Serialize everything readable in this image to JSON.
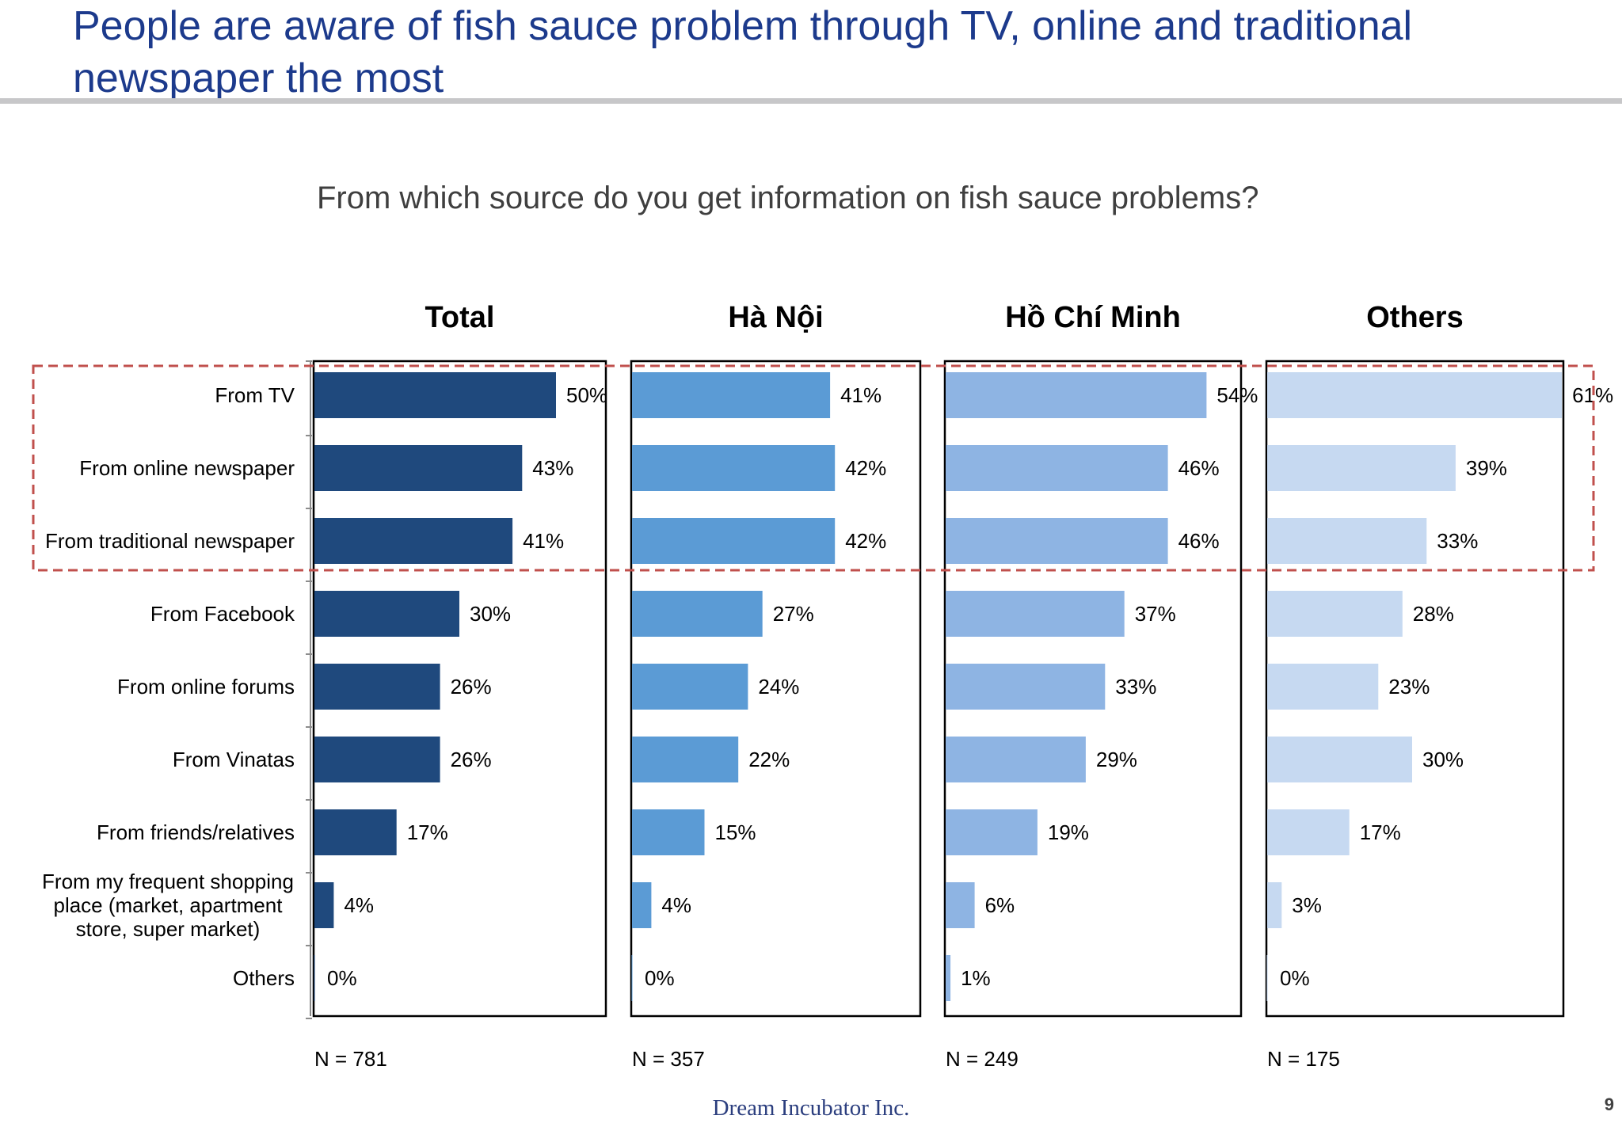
{
  "slide": {
    "title": "People are aware of fish sauce problem through TV, online and traditional newspaper the most",
    "question": "From which source do you get information on fish sauce problems?",
    "footer": "Dream Incubator Inc.",
    "page_number": "9"
  },
  "colors": {
    "title": "#1c3a8c",
    "highlight_border": "#c0504d",
    "series": [
      "#1f497d",
      "#5b9bd5",
      "#8eb4e3",
      "#c6d9f1"
    ]
  },
  "chart_data": {
    "type": "bar",
    "orientation": "horizontal",
    "title": "From which source do you get information on fish sauce problems?",
    "categories": [
      "From TV",
      "From online newspaper",
      "From traditional newspaper",
      "From Facebook",
      "From online forums",
      "From Vinatas",
      "From friends/relatives",
      "From my frequent shopping place (market, apartment store, super market)",
      "Others"
    ],
    "category_lines": [
      [
        "From TV"
      ],
      [
        "From online newspaper"
      ],
      [
        "From traditional newspaper"
      ],
      [
        "From Facebook"
      ],
      [
        "From online forums"
      ],
      [
        "From Vinatas"
      ],
      [
        "From friends/relatives"
      ],
      [
        "From my frequent shopping",
        "place (market, apartment",
        "store, super market)"
      ],
      [
        "Others"
      ]
    ],
    "unit": "%",
    "xlim": [
      0,
      100
    ],
    "grid": false,
    "highlighted_categories": [
      "From TV",
      "From online newspaper",
      "From traditional newspaper"
    ],
    "panels": [
      {
        "name": "Total",
        "n_label": "N = 781",
        "values": [
          50,
          43,
          41,
          30,
          26,
          26,
          17,
          4,
          0
        ]
      },
      {
        "name": "Hà Nội",
        "n_label": "N = 357",
        "values": [
          41,
          42,
          42,
          27,
          24,
          22,
          15,
          4,
          0
        ]
      },
      {
        "name": "Hồ Chí Minh",
        "n_label": "N = 249",
        "values": [
          54,
          46,
          46,
          37,
          33,
          29,
          19,
          6,
          1
        ]
      },
      {
        "name": "Others",
        "n_label": "N = 175",
        "values": [
          61,
          39,
          33,
          28,
          23,
          30,
          17,
          3,
          0
        ]
      }
    ]
  }
}
